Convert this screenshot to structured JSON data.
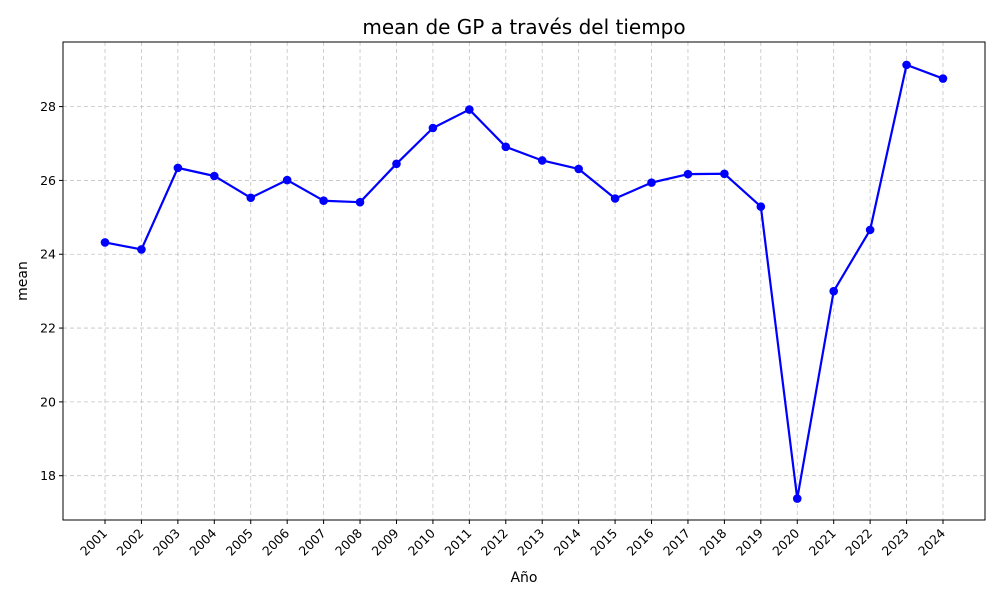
{
  "chart_data": {
    "type": "line",
    "title": "mean de GP a través del tiempo",
    "xlabel": "Año",
    "ylabel": "mean",
    "x": [
      "2001",
      "2002",
      "2003",
      "2004",
      "2005",
      "2006",
      "2007",
      "2008",
      "2009",
      "2010",
      "2011",
      "2012",
      "2013",
      "2014",
      "2015",
      "2016",
      "2017",
      "2018",
      "2019",
      "2020",
      "2021",
      "2022",
      "2023",
      "2024"
    ],
    "series": [
      {
        "values": [
          24.32,
          24.13,
          26.34,
          26.12,
          25.53,
          26.01,
          25.45,
          25.41,
          26.45,
          27.42,
          27.92,
          26.91,
          26.54,
          26.31,
          25.51,
          25.94,
          26.17,
          26.18,
          25.29,
          17.38,
          23.0,
          24.66,
          29.13,
          28.76
        ],
        "color": "#0000ff"
      }
    ],
    "yticks": [
      18,
      20,
      22,
      24,
      26,
      28
    ],
    "ylim": [
      16.8,
      29.75
    ],
    "grid": true,
    "legend": "none"
  }
}
